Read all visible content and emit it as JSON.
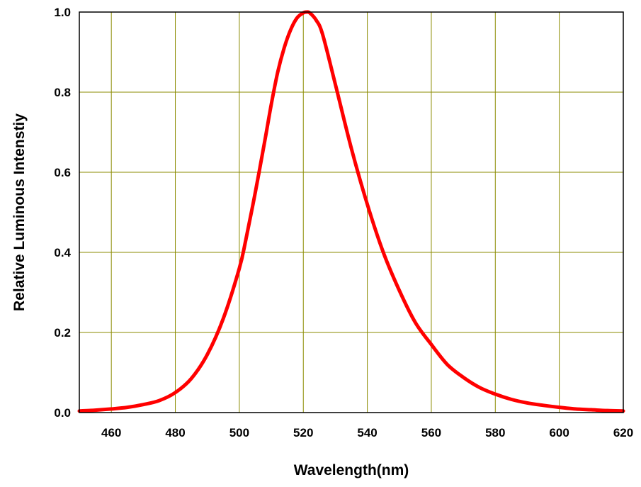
{
  "chart_data": {
    "type": "line",
    "title": "",
    "xlabel": "Wavelength(nm)",
    "ylabel": "Relative Luminous Intenstiy",
    "xlim": [
      450,
      620
    ],
    "ylim": [
      0.0,
      1.0
    ],
    "x_ticks": [
      460,
      480,
      500,
      520,
      540,
      560,
      580,
      600,
      620
    ],
    "x_tick_labels": [
      "460",
      "480",
      "500",
      "520",
      "540",
      "560",
      "580",
      "600",
      "620"
    ],
    "y_ticks": [
      0.0,
      0.2,
      0.4,
      0.6,
      0.8,
      1.0
    ],
    "y_tick_labels": [
      "0.0",
      "0.2",
      "0.4",
      "0.6",
      "0.8",
      "1.0"
    ],
    "grid": true,
    "grid_color": "#8b8b00",
    "legend": "none",
    "series": [
      {
        "color": "#ff0000",
        "x": [
          450,
          455,
          460,
          465,
          470,
          475,
          480,
          485,
          490,
          495,
          500,
          502,
          505,
          508,
          510,
          512,
          514,
          516,
          518,
          520,
          521,
          522,
          524,
          526,
          530,
          535,
          540,
          545,
          550,
          555,
          560,
          565,
          570,
          575,
          580,
          585,
          590,
          595,
          600,
          605,
          610,
          615,
          620
        ],
        "y": [
          0.004,
          0.006,
          0.009,
          0.013,
          0.02,
          0.03,
          0.05,
          0.085,
          0.145,
          0.235,
          0.36,
          0.43,
          0.55,
          0.68,
          0.77,
          0.85,
          0.91,
          0.955,
          0.985,
          0.998,
          1.0,
          0.998,
          0.98,
          0.945,
          0.82,
          0.66,
          0.52,
          0.4,
          0.305,
          0.225,
          0.17,
          0.12,
          0.088,
          0.063,
          0.046,
          0.033,
          0.024,
          0.018,
          0.013,
          0.009,
          0.007,
          0.005,
          0.004
        ]
      }
    ]
  }
}
